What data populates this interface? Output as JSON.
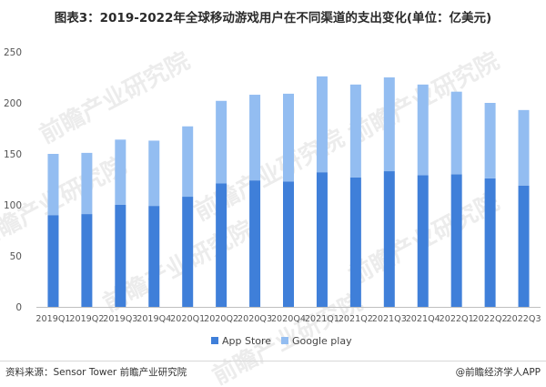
{
  "title": "图表3：2019-2022年全球移动游戏用户在不同渠道的支出变化(单位：亿美元)",
  "source": "资料来源：Sensor Tower 前瞻产业研究院",
  "brand": "@前瞻经济学人APP",
  "watermark": "前瞻产业研究院",
  "colors": {
    "app_store": "#3f7fd9",
    "google_play": "#93bdf1",
    "axis": "#bfbfbf"
  },
  "chart_data": {
    "type": "bar",
    "stacked": true,
    "categories": [
      "2019Q1",
      "2019Q2",
      "2019Q3",
      "2019Q4",
      "2020Q1",
      "2020Q2",
      "2020Q3",
      "2020Q4",
      "2021Q1",
      "2021Q2",
      "2021Q3",
      "2021Q4",
      "2022Q1",
      "2022Q2",
      "2022Q3"
    ],
    "series": [
      {
        "name": "App Store",
        "values": [
          90,
          91,
          100,
          99,
          108,
          121,
          124,
          123,
          132,
          127,
          133,
          129,
          130,
          126,
          119
        ]
      },
      {
        "name": "Google play",
        "values": [
          60,
          60,
          64,
          64,
          69,
          81,
          84,
          86,
          94,
          91,
          92,
          89,
          81,
          74,
          74
        ]
      }
    ],
    "ylim": [
      0,
      250
    ],
    "yticks": [
      0,
      50,
      100,
      150,
      200,
      250
    ],
    "grid": false,
    "legend": "bottom"
  }
}
